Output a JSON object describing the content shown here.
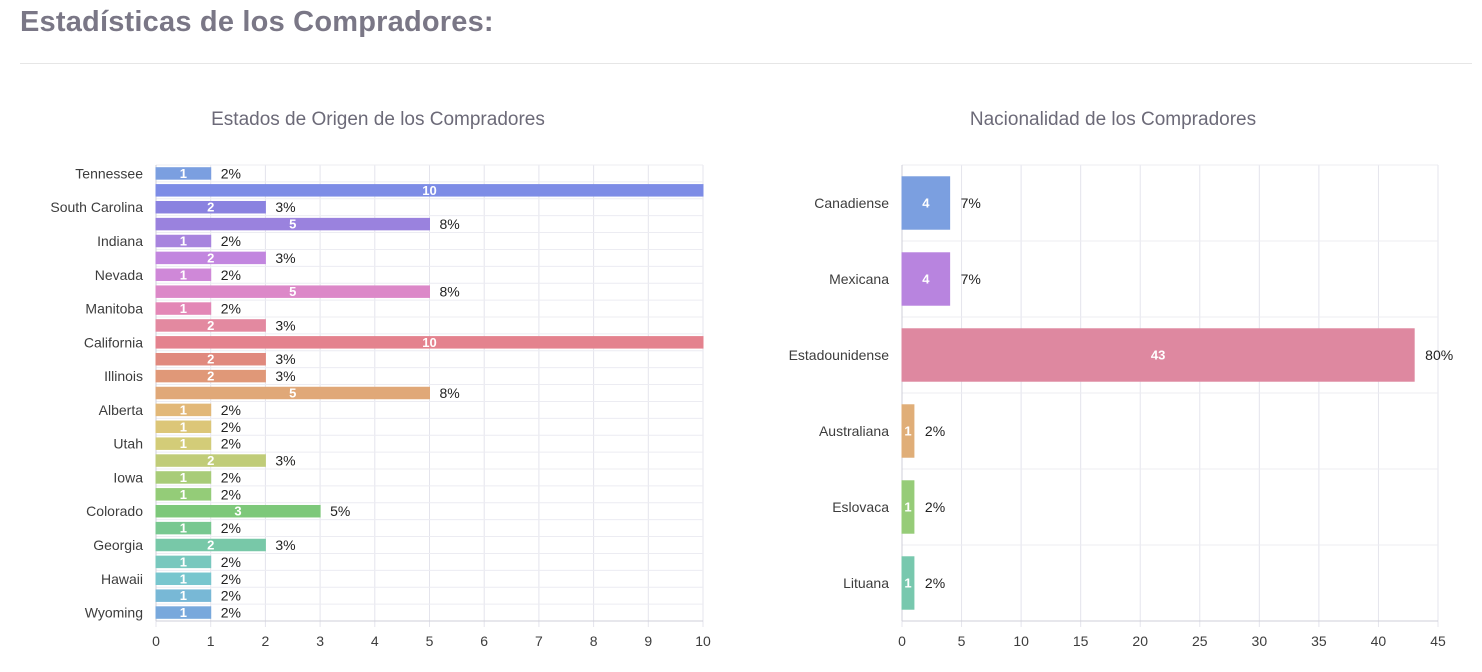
{
  "page": {
    "title": "Estadísticas de los Compradores:"
  },
  "chart_data": [
    {
      "type": "bar",
      "orientation": "horizontal",
      "title": "Estados de Origen de los Compradores",
      "xlim": [
        0,
        10
      ],
      "xticks": [
        0,
        1,
        2,
        3,
        4,
        5,
        6,
        7,
        8,
        9,
        10
      ],
      "grid": true,
      "bars": [
        {
          "label": "Tennessee",
          "value": 1,
          "percent": "2%",
          "color": "#7b9fe0"
        },
        {
          "label": "",
          "value": 10,
          "percent": "",
          "color": "#7d8ce6"
        },
        {
          "label": "South Carolina",
          "value": 2,
          "percent": "3%",
          "color": "#8a82e0"
        },
        {
          "label": "",
          "value": 5,
          "percent": "8%",
          "color": "#9a82de"
        },
        {
          "label": "Indiana",
          "value": 1,
          "percent": "2%",
          "color": "#a884de"
        },
        {
          "label": "",
          "value": 2,
          "percent": "3%",
          "color": "#c286df"
        },
        {
          "label": "Nevada",
          "value": 1,
          "percent": "2%",
          "color": "#cf88d8"
        },
        {
          "label": "",
          "value": 5,
          "percent": "8%",
          "color": "#dc88c8"
        },
        {
          "label": "Manitoba",
          "value": 1,
          "percent": "2%",
          "color": "#e387b6"
        },
        {
          "label": "",
          "value": 2,
          "percent": "3%",
          "color": "#e389a0"
        },
        {
          "label": "California",
          "value": 10,
          "percent": "",
          "color": "#e4828e"
        },
        {
          "label": "",
          "value": 2,
          "percent": "3%",
          "color": "#e0897e"
        },
        {
          "label": "Illinois",
          "value": 2,
          "percent": "3%",
          "color": "#e09878"
        },
        {
          "label": "",
          "value": 5,
          "percent": "8%",
          "color": "#e0a878"
        },
        {
          "label": "Alberta",
          "value": 1,
          "percent": "2%",
          "color": "#e2b878"
        },
        {
          "label": "",
          "value": 1,
          "percent": "2%",
          "color": "#dcc678"
        },
        {
          "label": "Utah",
          "value": 1,
          "percent": "2%",
          "color": "#d3cc78"
        },
        {
          "label": "",
          "value": 2,
          "percent": "3%",
          "color": "#c0cc78"
        },
        {
          "label": "Iowa",
          "value": 1,
          "percent": "2%",
          "color": "#a8cc78"
        },
        {
          "label": "",
          "value": 1,
          "percent": "2%",
          "color": "#94cc78"
        },
        {
          "label": "Colorado",
          "value": 3,
          "percent": "5%",
          "color": "#7dc87a"
        },
        {
          "label": "",
          "value": 1,
          "percent": "2%",
          "color": "#78c890"
        },
        {
          "label": "Georgia",
          "value": 2,
          "percent": "3%",
          "color": "#78c8a8"
        },
        {
          "label": "",
          "value": 1,
          "percent": "2%",
          "color": "#78c8be"
        },
        {
          "label": "Hawaii",
          "value": 1,
          "percent": "2%",
          "color": "#78c6ce"
        },
        {
          "label": "",
          "value": 1,
          "percent": "2%",
          "color": "#78b8d6"
        },
        {
          "label": "Wyoming",
          "value": 1,
          "percent": "2%",
          "color": "#78a8dc"
        }
      ]
    },
    {
      "type": "bar",
      "orientation": "horizontal",
      "title": "Nacionalidad de los Compradores",
      "xlim": [
        0,
        45
      ],
      "xticks": [
        0,
        5,
        10,
        15,
        20,
        25,
        30,
        35,
        40,
        45
      ],
      "grid": true,
      "bars": [
        {
          "label": "Canadiense",
          "value": 4,
          "percent": "7%",
          "color": "#7b9fe0"
        },
        {
          "label": "Mexicana",
          "value": 4,
          "percent": "7%",
          "color": "#b884df"
        },
        {
          "label": "Estadounidense",
          "value": 43,
          "percent": "80%",
          "color": "#de88a0"
        },
        {
          "label": "Australiana",
          "value": 1,
          "percent": "2%",
          "color": "#e0ae78"
        },
        {
          "label": "Eslovaca",
          "value": 1,
          "percent": "2%",
          "color": "#96cc78"
        },
        {
          "label": "Lituana",
          "value": 1,
          "percent": "2%",
          "color": "#78c8ae"
        }
      ]
    }
  ]
}
